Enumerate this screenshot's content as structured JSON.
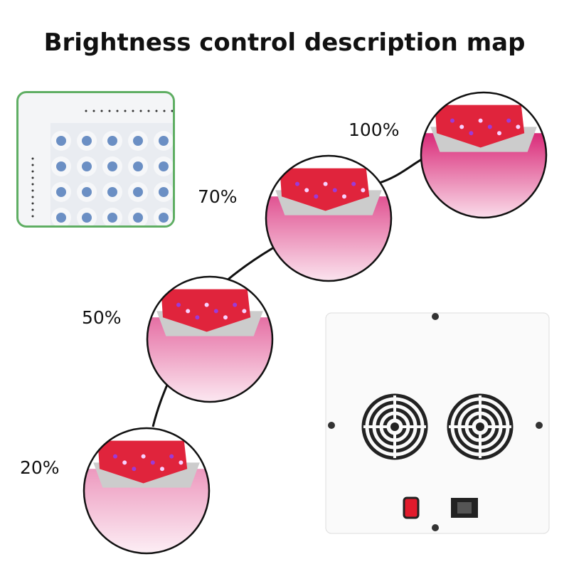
{
  "title": "Brightness control description map",
  "levels": [
    {
      "label": "100%",
      "fill": 1.0
    },
    {
      "label": "70%",
      "fill": 0.7
    },
    {
      "label": "50%",
      "fill": 0.5
    },
    {
      "label": "20%",
      "fill": 0.2
    }
  ],
  "colors": {
    "inset_border": "#5fae63",
    "led_red": "#e0243c",
    "pink": "#e8407f",
    "switch": "#e21b2c"
  }
}
